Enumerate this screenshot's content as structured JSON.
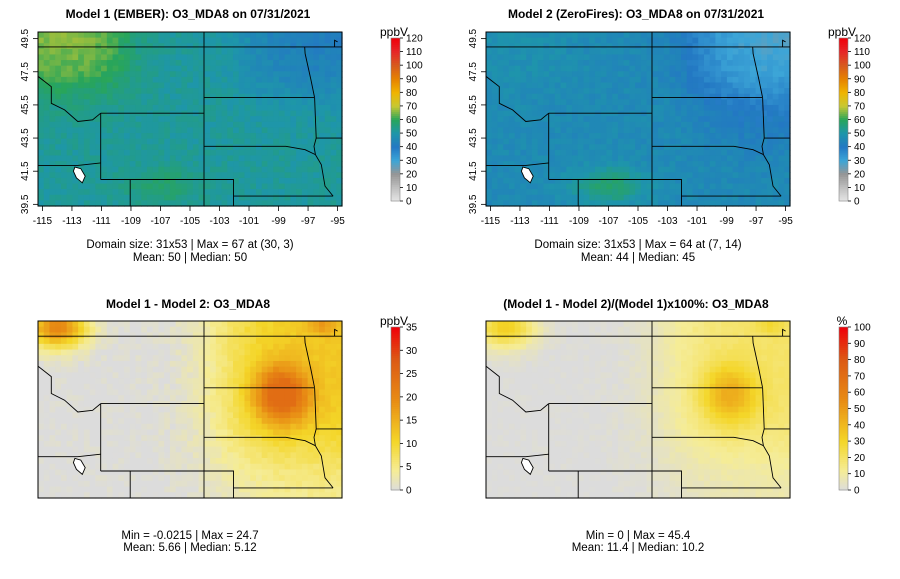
{
  "chart_data": [
    {
      "type": "heatmap",
      "title": "Model 1 (EMBER): O3_MDA8 on 07/31/2021",
      "unit": "ppbV",
      "x_ticks": [
        "-115",
        "-113",
        "-111",
        "-109",
        "-107",
        "-105",
        "-103",
        "-101",
        "-99",
        "-97",
        "-95"
      ],
      "y_ticks": [
        "39.5",
        "41.5",
        "43.5",
        "45.5",
        "47.5",
        "49.5"
      ],
      "xlim": [
        -115.3,
        -94.7
      ],
      "ylim": [
        39.4,
        49.9
      ],
      "scale": {
        "min": 0,
        "max": 120,
        "ticks": [
          "0",
          "10",
          "20",
          "30",
          "40",
          "50",
          "60",
          "70",
          "80",
          "90",
          "100",
          "110",
          "120"
        ],
        "palette": "ozone"
      },
      "field": {
        "base": 52,
        "west_hi": 66,
        "se_hot": 6,
        "ne_low": -10,
        "dakota": 0,
        "noise": 2
      },
      "info_line1": "Domain size: 31x53 | Max = 67 at (30, 3)",
      "info_line2": "Mean: 50 |  Median: 50"
    },
    {
      "type": "heatmap",
      "title": "Model 2 (ZeroFires): O3_MDA8 on 07/31/2021",
      "unit": "ppbV",
      "x_ticks": [
        "-115",
        "-113",
        "-111",
        "-109",
        "-107",
        "-105",
        "-103",
        "-101",
        "-99",
        "-97",
        "-95"
      ],
      "y_ticks": [
        "39.5",
        "41.5",
        "43.5",
        "45.5",
        "47.5",
        "49.5"
      ],
      "xlim": [
        -115.3,
        -94.7
      ],
      "ylim": [
        39.4,
        49.9
      ],
      "scale": {
        "min": 0,
        "max": 120,
        "ticks": [
          "0",
          "10",
          "20",
          "30",
          "40",
          "50",
          "60",
          "70",
          "80",
          "90",
          "100",
          "110",
          "120"
        ],
        "palette": "ozone"
      },
      "field": {
        "base": 46,
        "west_hi": 48,
        "se_hot": 12,
        "ne_low": -14,
        "dakota": -4,
        "noise": 2
      },
      "info_line1": "Domain size: 31x53 | Max = 64 at (7, 14)",
      "info_line2": "Mean: 44 |  Median: 45"
    },
    {
      "type": "heatmap",
      "title": "Model 1 - Model 2: O3_MDA8",
      "unit": "ppbV",
      "x_ticks": [],
      "y_ticks": [],
      "xlim": [
        -115.3,
        -94.7
      ],
      "ylim": [
        39.4,
        49.9
      ],
      "scale": {
        "min": 0,
        "max": 35,
        "ticks": [
          "0",
          "5",
          "10",
          "15",
          "20",
          "25",
          "30",
          "35"
        ],
        "palette": "diff"
      },
      "field": {
        "kind": "diff",
        "max": 24.7
      },
      "info_line1": "Min = -0.0215 | Max = 24.7",
      "info_line2": "Mean: 5.66 |  Median: 5.12"
    },
    {
      "type": "heatmap",
      "title": "(Model 1 - Model 2)/(Model 1)x100%: O3_MDA8",
      "unit": "%",
      "x_ticks": [],
      "y_ticks": [],
      "xlim": [
        -115.3,
        -94.7
      ],
      "ylim": [
        39.4,
        49.9
      ],
      "scale": {
        "min": 0,
        "max": 100,
        "ticks": [
          "0",
          "10",
          "20",
          "30",
          "40",
          "50",
          "60",
          "70",
          "80",
          "90",
          "100"
        ],
        "palette": "diff"
      },
      "field": {
        "kind": "pct",
        "max": 45.4
      },
      "info_line1": "Min = 0 | Max = 45.4",
      "info_line2": "Mean: 11.4 |  Median: 10.2"
    }
  ]
}
